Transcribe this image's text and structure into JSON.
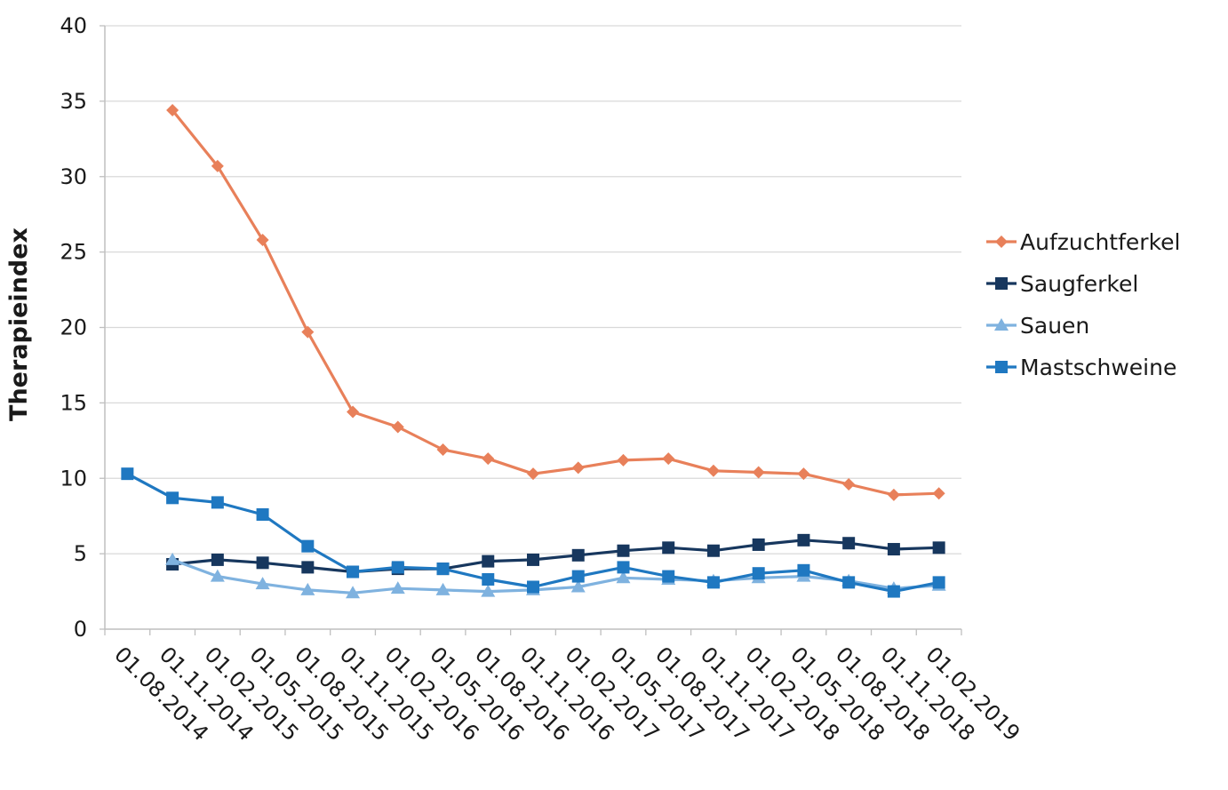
{
  "chart_data": {
    "type": "line",
    "title": "",
    "xlabel": "",
    "ylabel": "Therapieindex",
    "ylim": [
      0,
      40
    ],
    "yticks": [
      0,
      5,
      10,
      15,
      20,
      25,
      30,
      35,
      40
    ],
    "grid": true,
    "legend_position": "right",
    "categories": [
      "01.08.2014",
      "01.11.2014",
      "01.02.2015",
      "01.05.2015",
      "01.08.2015",
      "01.11.2015",
      "01.02.2016",
      "01.05.2016",
      "01.08.2016",
      "01.11.2016",
      "01.02.2017",
      "01.05.2017",
      "01.08.2017",
      "01.11.2017",
      "01.02.2018",
      "01.05.2018",
      "01.08.2018",
      "01.11.2018",
      "01.02.2019"
    ],
    "series": [
      {
        "name": "Aufzuchtferkel",
        "color": "#E8805A",
        "marker": "diamond",
        "values": [
          null,
          34.4,
          30.7,
          25.8,
          19.7,
          14.4,
          13.4,
          11.9,
          11.3,
          10.3,
          10.7,
          11.2,
          11.3,
          10.5,
          10.4,
          10.3,
          9.6,
          8.9,
          9.0
        ]
      },
      {
        "name": "Saugferkel",
        "color": "#17375E",
        "marker": "square",
        "values": [
          null,
          4.3,
          4.6,
          4.4,
          4.1,
          3.8,
          4.0,
          4.0,
          4.5,
          4.6,
          4.9,
          5.2,
          5.4,
          5.2,
          5.6,
          5.9,
          5.7,
          5.3,
          5.4
        ]
      },
      {
        "name": "Sauen",
        "color": "#7FB2DF",
        "marker": "triangle",
        "values": [
          null,
          4.6,
          3.5,
          3.0,
          2.6,
          2.4,
          2.7,
          2.6,
          2.5,
          2.6,
          2.8,
          3.4,
          3.3,
          3.2,
          3.4,
          3.5,
          3.2,
          2.7,
          2.9
        ]
      },
      {
        "name": "Mastschweine",
        "color": "#1F78C1",
        "marker": "square",
        "values": [
          10.3,
          8.7,
          8.4,
          7.6,
          5.5,
          3.8,
          4.1,
          4.0,
          3.3,
          2.8,
          3.5,
          4.1,
          3.5,
          3.1,
          3.7,
          3.9,
          3.1,
          2.5,
          3.1
        ]
      }
    ]
  }
}
